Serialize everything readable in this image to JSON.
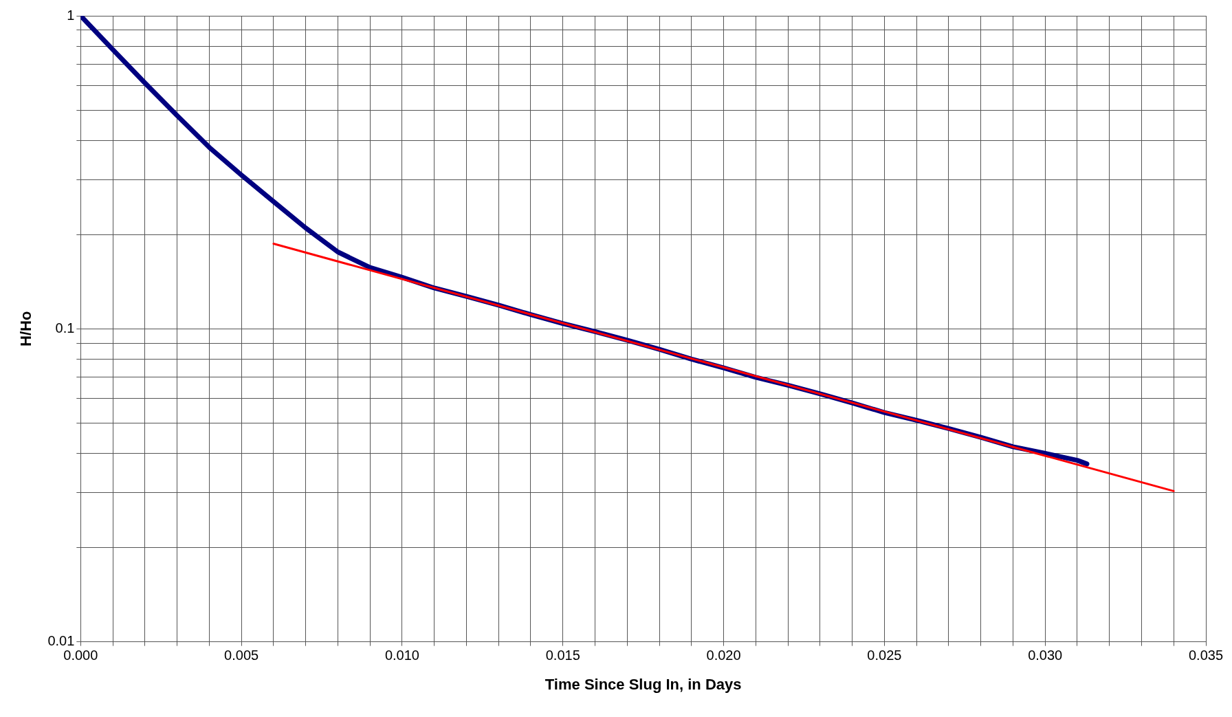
{
  "chart_data": {
    "type": "line",
    "xlabel": "Time Since Slug In, in Days",
    "ylabel": "H/Ho",
    "log": "y",
    "grid": true,
    "legend": false,
    "marker": "none",
    "line_style": "solid",
    "xlim": [
      0,
      0.035
    ],
    "ylim": [
      0.01,
      1
    ],
    "xticks": [
      {
        "value": 0,
        "label": "0.000"
      },
      {
        "value": 0.001,
        "label": null
      },
      {
        "value": 0.002,
        "label": null
      },
      {
        "value": 0.003,
        "label": null
      },
      {
        "value": 0.004,
        "label": null
      },
      {
        "value": 0.005,
        "label": "0.005"
      },
      {
        "value": 0.006,
        "label": null
      },
      {
        "value": 0.007,
        "label": null
      },
      {
        "value": 0.008,
        "label": null
      },
      {
        "value": 0.009,
        "label": null
      },
      {
        "value": 0.01,
        "label": "0.010"
      },
      {
        "value": 0.011,
        "label": null
      },
      {
        "value": 0.012,
        "label": null
      },
      {
        "value": 0.013,
        "label": null
      },
      {
        "value": 0.014,
        "label": null
      },
      {
        "value": 0.015,
        "label": "0.015"
      },
      {
        "value": 0.016,
        "label": null
      },
      {
        "value": 0.017,
        "label": null
      },
      {
        "value": 0.018,
        "label": null
      },
      {
        "value": 0.019,
        "label": null
      },
      {
        "value": 0.02,
        "label": "0.020"
      },
      {
        "value": 0.021,
        "label": null
      },
      {
        "value": 0.022,
        "label": null
      },
      {
        "value": 0.023,
        "label": null
      },
      {
        "value": 0.024,
        "label": null
      },
      {
        "value": 0.025,
        "label": "0.025"
      },
      {
        "value": 0.026,
        "label": null
      },
      {
        "value": 0.027,
        "label": null
      },
      {
        "value": 0.028,
        "label": null
      },
      {
        "value": 0.029,
        "label": null
      },
      {
        "value": 0.03,
        "label": "0.030"
      },
      {
        "value": 0.031,
        "label": null
      },
      {
        "value": 0.032,
        "label": null
      },
      {
        "value": 0.033,
        "label": null
      },
      {
        "value": 0.034,
        "label": null
      },
      {
        "value": 0.035,
        "label": "0.035"
      }
    ],
    "yticks": [
      0.01,
      {
        "value": 0.02,
        "label": null
      },
      {
        "value": 0.03,
        "label": null
      },
      {
        "value": 0.04,
        "label": null
      },
      {
        "value": 0.05,
        "label": null
      },
      {
        "value": 0.06,
        "label": null
      },
      {
        "value": 0.07,
        "label": null
      },
      {
        "value": 0.08,
        "label": null
      },
      {
        "value": 0.09,
        "label": null
      },
      0.1,
      {
        "value": 0.2,
        "label": null
      },
      {
        "value": 0.3,
        "label": null
      },
      {
        "value": 0.4,
        "label": null
      },
      {
        "value": 0.5,
        "label": null
      },
      {
        "value": 0.6,
        "label": null
      },
      {
        "value": 0.7,
        "label": null
      },
      {
        "value": 0.8,
        "label": null
      },
      {
        "value": 0.9,
        "label": null
      },
      1
    ],
    "series": [
      {
        "color": "#000080",
        "x": [
          0,
          0.001,
          0.002,
          0.003,
          0.004,
          0.005,
          0.006,
          0.007,
          0.008,
          0.009,
          0.01,
          0.011,
          0.012,
          0.013,
          0.014,
          0.015,
          0.016,
          0.017,
          0.018,
          0.019,
          0.02,
          0.021,
          0.022,
          0.023,
          0.024,
          0.025,
          0.026,
          0.027,
          0.028,
          0.029,
          0.03,
          0.031,
          0.0313
        ],
        "values": [
          1,
          0.78,
          0.61,
          0.48,
          0.38,
          0.31,
          0.255,
          0.21,
          0.176,
          0.157,
          0.146,
          0.135,
          0.127,
          0.119,
          0.111,
          0.104,
          0.098,
          0.092,
          0.086,
          0.08,
          0.075,
          0.07,
          0.066,
          0.062,
          0.058,
          0.054,
          0.051,
          0.048,
          0.045,
          0.042,
          0.04,
          0.038,
          0.037
        ]
      },
      {
        "color": "#ff0000",
        "x": [
          0.006,
          0.034
        ],
        "values": [
          0.187,
          0.0303
        ]
      }
    ]
  }
}
